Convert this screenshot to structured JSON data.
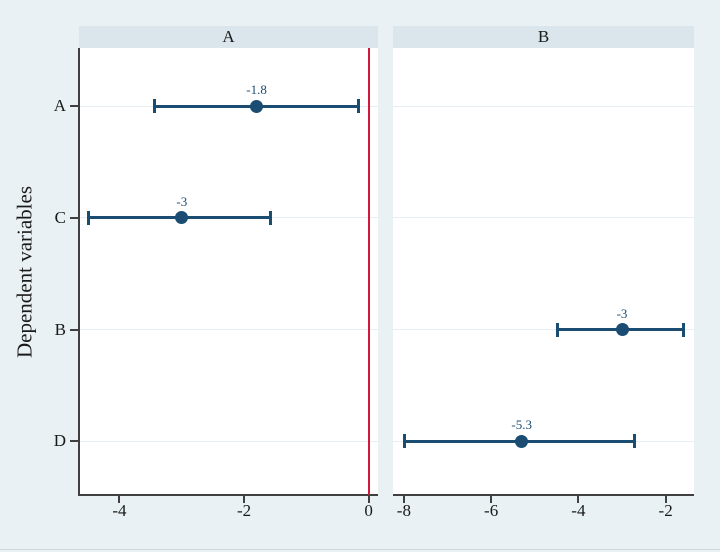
{
  "figure": {
    "colors": {
      "background": "#e9f1f4",
      "panel_header_bg": "#dbe6ec",
      "plot_bg": "#ffffff",
      "axis": "#404040",
      "gridline": "#e4eef3",
      "series_navy": "#1b4d73",
      "refline_red": "#d2193b",
      "text": "#1a1a1a",
      "bottom_edge": "#ccd8de"
    }
  },
  "chart_data": {
    "type": "scatter",
    "subtype": "coefficient_plot_with_ci_error_bars",
    "title": "",
    "xlabel": "",
    "ylabel": "Dependent variables",
    "grid": true,
    "legend": false,
    "categories": [
      "A",
      "C",
      "B",
      "D"
    ],
    "panels": [
      {
        "title": "A",
        "xlim": [
          -4.65,
          0.15
        ],
        "xticks": [
          -4,
          -2,
          0
        ],
        "xtick_labels": [
          "-4",
          "-2",
          "0"
        ],
        "refline_x": 0,
        "points": [
          {
            "category": "A",
            "estimate": -1.8,
            "label": "-1.8",
            "ci_low": -3.45,
            "ci_high": -0.15
          },
          {
            "category": "C",
            "estimate": -3.0,
            "label": "-3",
            "ci_low": -4.5,
            "ci_high": -1.57
          }
        ]
      },
      {
        "title": "B",
        "xlim": [
          -8.25,
          -1.35
        ],
        "xticks": [
          -8,
          -6,
          -4,
          -2
        ],
        "xtick_labels": [
          "-8",
          "-6",
          "-4",
          "-2"
        ],
        "refline_x": null,
        "points": [
          {
            "category": "B",
            "estimate": -3.0,
            "label": "-3",
            "ci_low": -4.5,
            "ci_high": -1.58
          },
          {
            "category": "D",
            "estimate": -5.3,
            "label": "-5.3",
            "ci_low": -8.0,
            "ci_high": -2.7
          }
        ]
      }
    ]
  }
}
